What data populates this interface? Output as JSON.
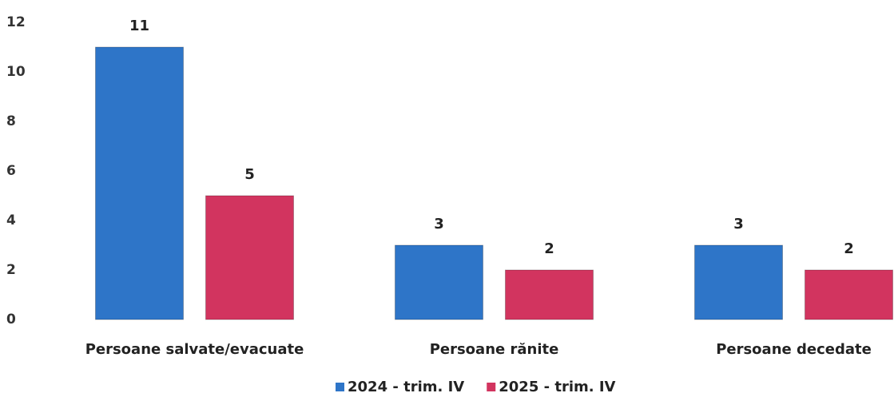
{
  "chart_data": {
    "type": "bar",
    "categories": [
      "Persoane salvate/evacuate",
      "Persoane rănite",
      "Persoane decedate"
    ],
    "series": [
      {
        "name": "2024 - trim. IV",
        "color": "#2e75c8",
        "values": [
          11,
          3,
          3
        ]
      },
      {
        "name": "2025 - trim. IV",
        "color": "#d2345f",
        "values": [
          5,
          2,
          2
        ]
      }
    ],
    "ylim": [
      0,
      12
    ],
    "yticks": [
      0,
      2,
      4,
      6,
      8,
      10,
      12
    ],
    "grid": false,
    "legend": "bottom"
  }
}
